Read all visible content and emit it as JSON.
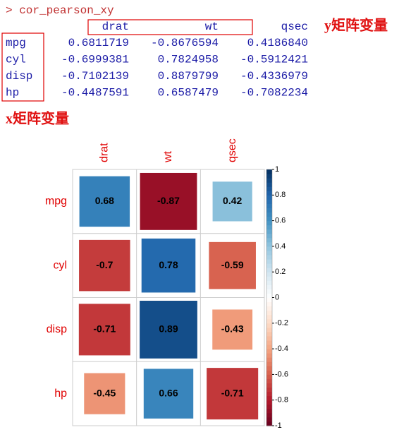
{
  "console": {
    "command": "> cor_pearson_xy",
    "columns": [
      "drat",
      "wt",
      "qsec"
    ],
    "rows": [
      {
        "name": "mpg",
        "values": [
          "0.6811719",
          "-0.8676594",
          "0.4186840"
        ]
      },
      {
        "name": "cyl",
        "values": [
          "-0.6999381",
          "0.7824958",
          "-0.5912421"
        ]
      },
      {
        "name": "disp",
        "values": [
          "-0.7102139",
          "0.8879799",
          "-0.4336979"
        ]
      },
      {
        "name": "hp",
        "values": [
          "-0.4487591",
          "0.6587479",
          "-0.7082234"
        ]
      }
    ]
  },
  "annotations": {
    "y_label": "y矩阵变量",
    "x_label": "x矩阵变量"
  },
  "chart_data": {
    "type": "corrplot",
    "x_categories": [
      "drat",
      "wt",
      "qsec"
    ],
    "y_categories": [
      "mpg",
      "cyl",
      "disp",
      "hp"
    ],
    "values": [
      [
        0.68,
        -0.87,
        0.42
      ],
      [
        -0.7,
        0.78,
        -0.59
      ],
      [
        -0.71,
        0.89,
        -0.43
      ],
      [
        -0.45,
        0.66,
        -0.71
      ]
    ],
    "clim": [
      -1,
      1
    ],
    "cticks": [
      -1,
      -0.8,
      -0.6,
      -0.4,
      -0.2,
      0,
      0.2,
      0.4,
      0.6,
      0.8,
      1
    ],
    "colormap": [
      "#67001F",
      "#B2182B",
      "#D6604D",
      "#F4A582",
      "#FDDBC7",
      "#FFFFFF",
      "#D1E5F0",
      "#92C5DE",
      "#4393C3",
      "#2166AC",
      "#053061"
    ]
  }
}
